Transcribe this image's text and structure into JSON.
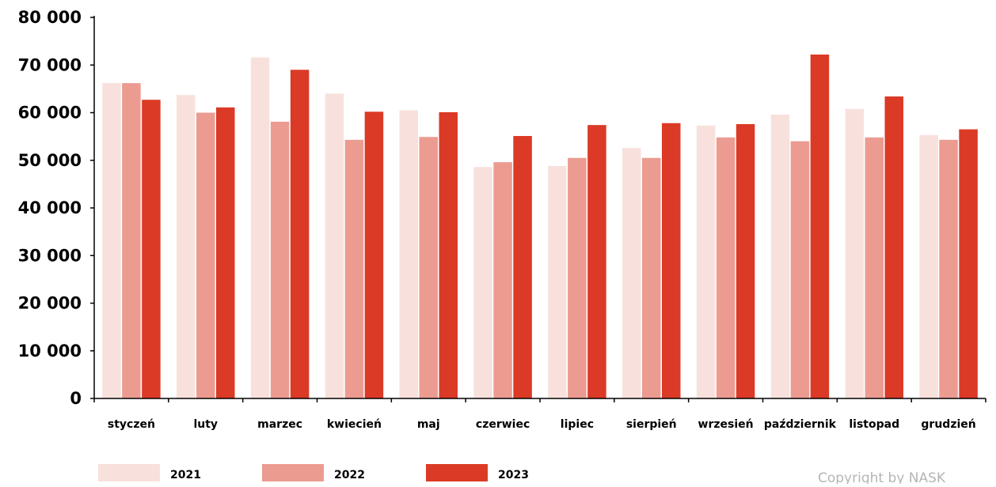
{
  "chart_data": {
    "type": "bar",
    "categories": [
      "styczeń",
      "luty",
      "marzec",
      "kwiecień",
      "maj",
      "czerwiec",
      "lipiec",
      "sierpień",
      "wrzesień",
      "październik",
      "listopad",
      "grudzień"
    ],
    "series": [
      {
        "name": "2021",
        "color": "#f8e1dc",
        "values": [
          66200,
          63700,
          71600,
          64000,
          60500,
          48600,
          48800,
          52600,
          57300,
          59600,
          60800,
          55300
        ]
      },
      {
        "name": "2022",
        "color": "#ec9b91",
        "values": [
          66200,
          60000,
          58100,
          54300,
          54900,
          49600,
          50500,
          50500,
          54800,
          54000,
          54800,
          54300
        ]
      },
      {
        "name": "2023",
        "color": "#db3a26",
        "values": [
          62700,
          61100,
          69000,
          60200,
          60100,
          55100,
          57400,
          57800,
          57600,
          72200,
          63400,
          56500
        ]
      }
    ],
    "yticks": [
      "0",
      "10 000",
      "20 000",
      "30 000",
      "40 000",
      "50 000",
      "60 000",
      "70 000",
      "80 000"
    ],
    "ylim": [
      0,
      80000
    ],
    "legend_position": "bottom"
  },
  "copyright": "Copyright by NASK"
}
